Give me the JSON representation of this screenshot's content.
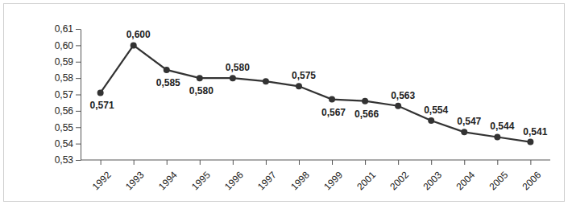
{
  "chart_data": {
    "type": "line",
    "categories": [
      "1992",
      "1993",
      "1994",
      "1995",
      "1996",
      "1997",
      "1998",
      "1999",
      "2001",
      "2002",
      "2003",
      "2004",
      "2005",
      "2006"
    ],
    "values": [
      0.571,
      0.6,
      0.585,
      0.58,
      0.58,
      0.578,
      0.575,
      0.567,
      0.566,
      0.563,
      0.554,
      0.547,
      0.544,
      0.541
    ],
    "value_labels": [
      "0,571",
      "0,600",
      "0,585",
      "0,580",
      "0,580",
      null,
      "0,575",
      "0,567",
      "0,566",
      "0,563",
      "0,554",
      "0,547",
      "0,544",
      "0,541"
    ],
    "data_labels": true,
    "color": "#333333",
    "marker": "circle",
    "line_style": "solid",
    "grid": false,
    "ylim": [
      0.53,
      0.61
    ],
    "yticks": [
      {
        "value": 0.53,
        "label": "0,53"
      },
      {
        "value": 0.54,
        "label": "0,54"
      },
      {
        "value": 0.55,
        "label": "0,55"
      },
      {
        "value": 0.56,
        "label": "0,56"
      },
      {
        "value": 0.57,
        "label": "0,57"
      },
      {
        "value": 0.58,
        "label": "0,58"
      },
      {
        "value": 0.59,
        "label": "0,59"
      },
      {
        "value": 0.6,
        "label": "0,60"
      },
      {
        "value": 0.61,
        "label": "0,61"
      }
    ]
  }
}
